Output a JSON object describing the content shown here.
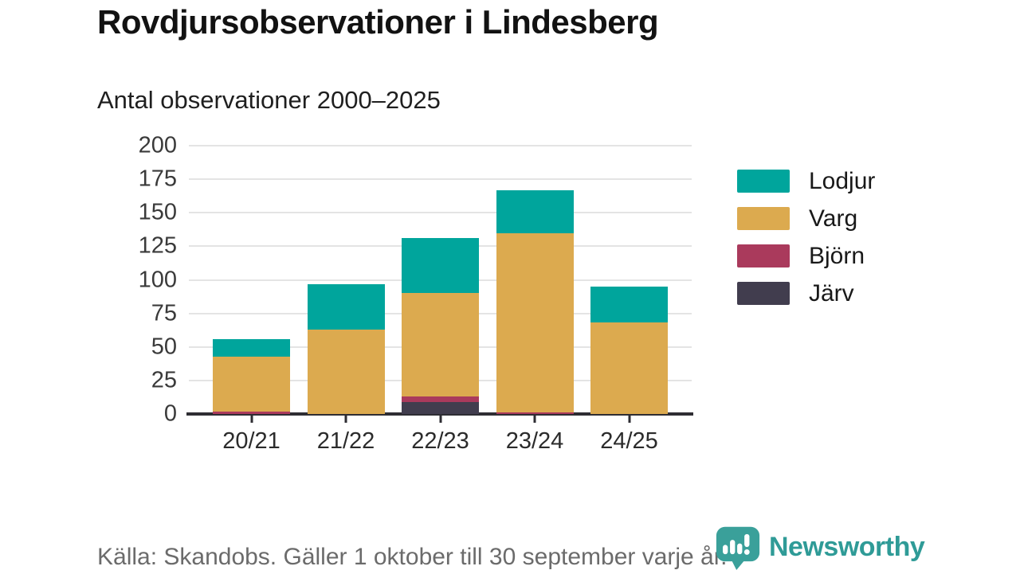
{
  "header": {
    "title": "Rovdjursobservationer i Lindesberg",
    "subtitle": "Antal observationer 2000–2025"
  },
  "chart_data": {
    "type": "bar",
    "stacked": true,
    "title": "Rovdjursobservationer i Lindesberg",
    "subtitle": "Antal observationer 2000–2025",
    "categories": [
      "20/21",
      "21/22",
      "22/23",
      "23/24",
      "24/25"
    ],
    "series": [
      {
        "name": "Järv",
        "color": "#413d4e",
        "values": [
          0,
          0,
          9,
          0,
          0
        ]
      },
      {
        "name": "Björn",
        "color": "#aa3a5c",
        "values": [
          2,
          0,
          4,
          1,
          0
        ]
      },
      {
        "name": "Varg",
        "color": "#dcaa4f",
        "values": [
          41,
          63,
          77,
          134,
          68
        ]
      },
      {
        "name": "Lodjur",
        "color": "#00a59c",
        "values": [
          13,
          34,
          41,
          32,
          27
        ]
      }
    ],
    "totals": [
      56,
      97,
      131,
      167,
      95
    ],
    "stack_order_bottom_to_top": [
      "Järv",
      "Björn",
      "Varg",
      "Lodjur"
    ],
    "legend_order_top_to_bottom": [
      "Lodjur",
      "Varg",
      "Björn",
      "Järv"
    ],
    "legend_position": "right",
    "grid": true,
    "y_ticks": [
      0,
      25,
      50,
      75,
      100,
      125,
      150,
      175,
      200
    ],
    "ylim": [
      0,
      200
    ],
    "xlabel": "",
    "ylabel": ""
  },
  "footer": {
    "source": "Källa: Skandobs. Gäller 1 oktober till 30 september varje år.",
    "brand": "Newsworthy"
  },
  "colors": {
    "axis": "#2e2d33",
    "gridline": "#e4e4e4",
    "brand_teal": "#2f9b97"
  }
}
